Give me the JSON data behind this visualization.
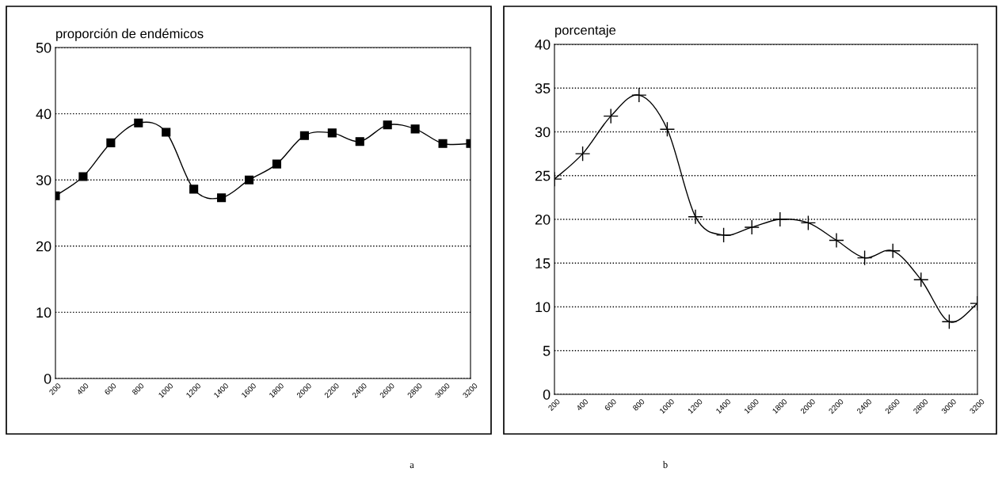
{
  "chart_data": [
    {
      "type": "line",
      "title": "proporción de endémicos",
      "x": [
        200,
        400,
        600,
        800,
        1000,
        1200,
        1400,
        1600,
        1800,
        2000,
        2200,
        2400,
        2600,
        2800,
        3000,
        3200
      ],
      "series": [
        {
          "color": "#000000",
          "values": [
            27.6,
            30.5,
            35.6,
            38.6,
            37.2,
            28.6,
            27.3,
            30.0,
            32.4,
            36.7,
            37.1,
            35.8,
            38.3,
            37.7,
            35.5,
            35.5
          ]
        }
      ],
      "xlim": [
        200,
        3200
      ],
      "xticks": [
        200,
        400,
        600,
        800,
        1000,
        1200,
        1400,
        1600,
        1800,
        2000,
        2200,
        2400,
        2600,
        2800,
        3000,
        3200
      ],
      "ylim": [
        0,
        50
      ],
      "yticks": [
        0,
        10,
        20,
        30,
        40,
        50
      ],
      "grid": "y",
      "marker": "square",
      "line_style": "solid",
      "annotations": [
        "a"
      ]
    },
    {
      "type": "line",
      "title": "porcentaje",
      "x": [
        200,
        400,
        600,
        800,
        1000,
        1200,
        1400,
        1600,
        1800,
        2000,
        2200,
        2400,
        2600,
        2800,
        3000,
        3200
      ],
      "series": [
        {
          "color": "#000000",
          "values": [
            24.6,
            27.5,
            31.8,
            34.2,
            30.3,
            20.3,
            18.2,
            19.1,
            20.0,
            19.6,
            17.6,
            15.6,
            16.4,
            13.1,
            8.3,
            10.4
          ]
        }
      ],
      "xlim": [
        200,
        3200
      ],
      "xticks": [
        200,
        400,
        600,
        800,
        1000,
        1200,
        1400,
        1600,
        1800,
        2000,
        2200,
        2400,
        2600,
        2800,
        3000,
        3200
      ],
      "ylim": [
        0,
        40
      ],
      "yticks": [
        0,
        5,
        10,
        15,
        20,
        25,
        30,
        35,
        40
      ],
      "grid": "y",
      "marker": "cross",
      "line_style": "solid",
      "annotations": [
        "b"
      ]
    }
  ]
}
